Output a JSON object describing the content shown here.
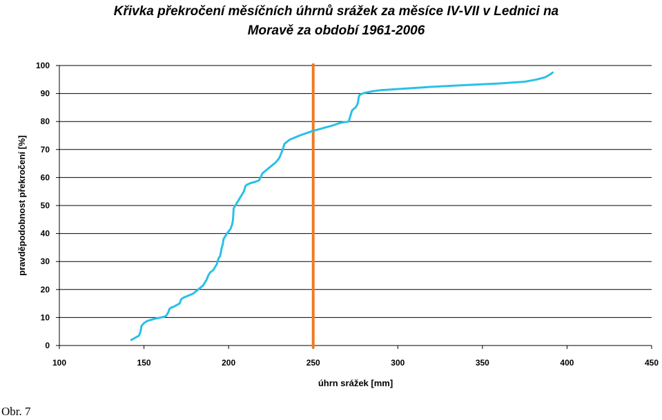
{
  "chart_data": {
    "type": "line",
    "title_line1": "Křivka překročení měsíčních úhrnů srážek za měsíce IV-VII v Lednici na",
    "title_line2": "Moravě za období 1961-2006",
    "xlabel": "úhrn srážek [mm]",
    "ylabel": "pravděpodobnost překročení [%]",
    "xlim": [
      100,
      450
    ],
    "ylim": [
      0,
      100
    ],
    "xticks": [
      "100",
      "150",
      "200",
      "250",
      "300",
      "350",
      "400",
      "450"
    ],
    "yticks": [
      "0",
      "10",
      "20",
      "30",
      "40",
      "50",
      "60",
      "70",
      "80",
      "90",
      "100"
    ],
    "grid": "horizontal",
    "vertical_marker_x": 250,
    "colors": {
      "curve": "#29c0e8",
      "marker": "#ee7b23",
      "grid": "#000000"
    },
    "series": [
      {
        "x": [
          142.5,
          147,
          148,
          148.5,
          150,
          152,
          156,
          160,
          163,
          164,
          164.5,
          165,
          166,
          168,
          171,
          172,
          173,
          175,
          177,
          179,
          181,
          183,
          185,
          186,
          187,
          188,
          189,
          191,
          192,
          193,
          193.5,
          194,
          195,
          196,
          196.5,
          197,
          199,
          201,
          202,
          202.5,
          202.7,
          203,
          205,
          206,
          207,
          208,
          209,
          210,
          211,
          213,
          216,
          218,
          220,
          224,
          228,
          230,
          231,
          232,
          233,
          236,
          242,
          249,
          255,
          261,
          266,
          271,
          272,
          273,
          275,
          276,
          276.5,
          277,
          277.5,
          280,
          285,
          290,
          300,
          310,
          320,
          340,
          360,
          375,
          382,
          387,
          390,
          391.5
        ],
        "y": [
          2,
          3.5,
          5,
          7,
          8,
          8.8,
          9.5,
          10,
          10.5,
          11.5,
          12,
          13,
          13.5,
          14,
          15,
          16.5,
          17,
          17.5,
          18,
          18.5,
          19.5,
          20.5,
          21.5,
          22.5,
          23.5,
          25,
          26,
          27,
          28,
          29,
          30,
          31,
          32,
          35,
          36,
          38,
          40,
          41.5,
          43,
          44.5,
          46,
          49,
          51,
          52,
          53,
          54,
          55,
          57,
          57.5,
          58,
          58.5,
          59,
          61.5,
          63.5,
          65.5,
          67,
          68.5,
          70,
          72,
          73.5,
          75,
          76.5,
          77.5,
          78.5,
          79.5,
          80,
          82,
          84,
          85,
          86,
          87,
          89,
          89.5,
          90.2,
          90.8,
          91.2,
          91.6,
          92,
          92.4,
          93,
          93.6,
          94.2,
          95,
          95.8,
          96.8,
          97.5
        ]
      }
    ]
  },
  "figure": {
    "caption": "Obr. 7"
  }
}
